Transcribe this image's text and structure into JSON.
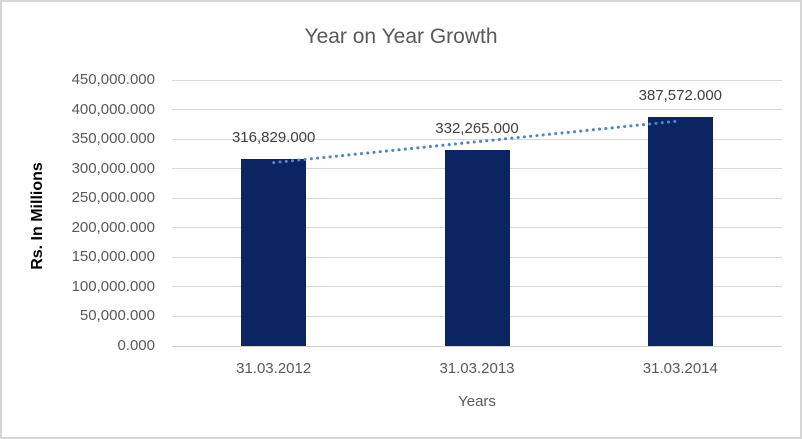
{
  "chart_data": {
    "type": "bar",
    "title": "Year on Year Growth",
    "xlabel": "Years",
    "ylabel": "Rs. In Millions",
    "categories": [
      "31.03.2012",
      "31.03.2013",
      "31.03.2014"
    ],
    "values": [
      316829,
      332265,
      387572
    ],
    "value_labels": [
      "316,829.000",
      "332,265.000",
      "387,572.000"
    ],
    "ylim": [
      0,
      450000
    ],
    "ytick_step": 50000,
    "ytick_labels": [
      "0.000",
      "50,000.000",
      "100,000.000",
      "150,000.000",
      "200,000.000",
      "250,000.000",
      "300,000.000",
      "350,000.000",
      "400,000.000",
      "450,000.000"
    ],
    "grid": true,
    "legend": "none",
    "trendline": {
      "type": "linear",
      "style": "dotted",
      "start_value": 310184,
      "end_value": 380927
    },
    "colors": {
      "bar": "#0B2563",
      "trendline": "#4C86C8",
      "title_text": "#595959",
      "tick_text": "#595959",
      "data_label_text": "#404040",
      "axis_title_text": "#000000",
      "gridline": "#D9D9D9",
      "axis_line": "#CFCFCF",
      "frame_border": "#D5D5D5",
      "background": "#FFFFFF"
    }
  }
}
